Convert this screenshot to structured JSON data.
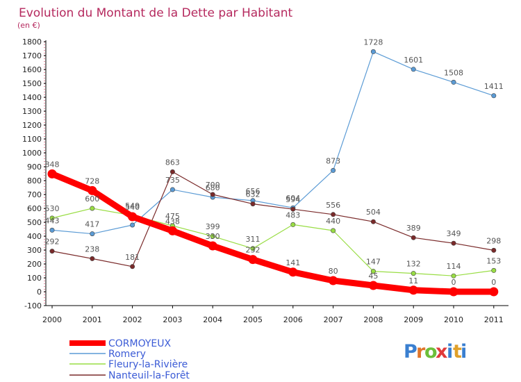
{
  "chart_data": {
    "type": "line",
    "title": "Evolution du Montant de la Dette par Habitant",
    "subtitle": "(en €)",
    "xlabel": "",
    "ylabel": "",
    "x": [
      "2000",
      "2001",
      "2002",
      "2003",
      "2004",
      "2005",
      "2006",
      "2007",
      "2008",
      "2009",
      "2010",
      "2011"
    ],
    "ylim": [
      -100,
      1800
    ],
    "yticks": [
      "-100",
      "0",
      "100",
      "200",
      "300",
      "400",
      "500",
      "600",
      "700",
      "800",
      "900",
      "1000",
      "1100",
      "1200",
      "1300",
      "1400",
      "1500",
      "1600",
      "1700",
      "1800"
    ],
    "grid": false,
    "legend_placement": "bottom-left",
    "series": [
      {
        "name": "CORMOYEUX",
        "color": "#ff0000",
        "values": [
          848,
          728,
          540,
          438,
          330,
          232,
          141,
          80,
          45,
          11,
          0,
          0
        ],
        "labels": [
          "848",
          "728",
          "540",
          "438",
          "330",
          "232",
          "141",
          "80",
          "45",
          "11",
          "0",
          "0"
        ]
      },
      {
        "name": "Romery",
        "color": "#5b9bd5",
        "values": [
          443,
          417,
          480,
          735,
          680,
          656,
          604,
          873,
          1728,
          1601,
          1508,
          1411
        ],
        "labels": [
          "443",
          "417",
          "",
          "735",
          "680",
          "656",
          "604",
          "873",
          "1728",
          "1601",
          "1508",
          "1411"
        ]
      },
      {
        "name": "Fleury-la-Rivière",
        "color": "#99dd44",
        "values": [
          530,
          600,
          549,
          475,
          399,
          311,
          483,
          440,
          147,
          132,
          114,
          153
        ],
        "labels": [
          "530",
          "600",
          "549",
          "475",
          "399",
          "311",
          "483",
          "440",
          "147",
          "132",
          "114",
          "153"
        ]
      },
      {
        "name": "Nanteuil-la-Forêt",
        "color": "#7a2a2a",
        "values": [
          292,
          238,
          181,
          863,
          700,
          632,
          594,
          556,
          504,
          389,
          349,
          298
        ],
        "labels": [
          "292",
          "238",
          "181",
          "863",
          "700",
          "632",
          "594",
          "556",
          "504",
          "389",
          "349",
          "298"
        ]
      }
    ]
  },
  "logo": {
    "letters": [
      "P",
      "r",
      "o",
      "x",
      "i",
      "t",
      "i"
    ],
    "colors": [
      "#3a7fd0",
      "#e0752a",
      "#6cbf3a",
      "#e03a3a",
      "#3a7fd0",
      "#e0a02a",
      "#3a7fd0"
    ]
  }
}
